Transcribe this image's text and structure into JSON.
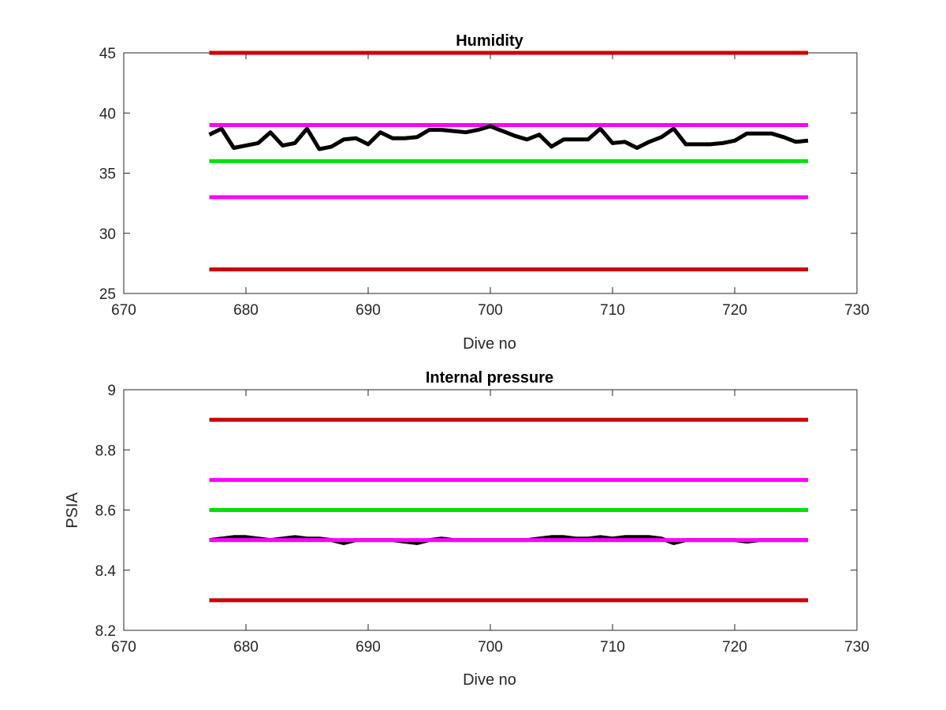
{
  "chart_data": [
    {
      "type": "line",
      "title": "Humidity",
      "xlabel": "Dive no",
      "ylabel": "",
      "xlim": [
        670,
        730
      ],
      "ylim": [
        25,
        45
      ],
      "xticks": [
        670,
        680,
        690,
        700,
        710,
        720,
        730
      ],
      "yticks": [
        25,
        30,
        35,
        40,
        45
      ],
      "grid": false,
      "legend": "none",
      "series": [
        {
          "role": "upper-limit",
          "color": "#cc0000",
          "x": [
            677,
            726
          ],
          "y": [
            45,
            45
          ]
        },
        {
          "role": "upper-warning",
          "color": "#ff00ff",
          "x": [
            677,
            726
          ],
          "y": [
            39,
            39
          ]
        },
        {
          "role": "nominal",
          "color": "#00e000",
          "x": [
            677,
            726
          ],
          "y": [
            36,
            36
          ]
        },
        {
          "role": "lower-warning",
          "color": "#ff00ff",
          "x": [
            677,
            726
          ],
          "y": [
            33,
            33
          ]
        },
        {
          "role": "lower-limit",
          "color": "#cc0000",
          "x": [
            677,
            726
          ],
          "y": [
            27,
            27
          ]
        },
        {
          "role": "measurement",
          "color": "#000000",
          "x": [
            677,
            678,
            679,
            680,
            681,
            682,
            683,
            684,
            685,
            686,
            687,
            688,
            689,
            690,
            691,
            692,
            693,
            694,
            695,
            696,
            697,
            698,
            699,
            700,
            701,
            702,
            703,
            704,
            705,
            706,
            707,
            708,
            709,
            710,
            711,
            712,
            713,
            714,
            715,
            716,
            717,
            718,
            719,
            720,
            721,
            722,
            723,
            724,
            725,
            726
          ],
          "y": [
            38.2,
            38.7,
            37.1,
            37.3,
            37.5,
            38.4,
            37.3,
            37.5,
            38.7,
            37.0,
            37.2,
            37.8,
            37.9,
            37.4,
            38.4,
            37.9,
            37.9,
            38.0,
            38.6,
            38.6,
            38.5,
            38.4,
            38.6,
            38.9,
            38.5,
            38.1,
            37.8,
            38.2,
            37.2,
            37.8,
            37.8,
            37.8,
            38.7,
            37.5,
            37.6,
            37.1,
            37.6,
            38.0,
            38.7,
            37.4,
            37.4,
            37.4,
            37.5,
            37.7,
            38.3,
            38.3,
            38.3,
            38.0,
            37.6,
            37.7
          ]
        }
      ]
    },
    {
      "type": "line",
      "title": "Internal pressure",
      "xlabel": "Dive no",
      "ylabel": "PSIA",
      "xlim": [
        670,
        730
      ],
      "ylim": [
        8.2,
        9
      ],
      "xticks": [
        670,
        680,
        690,
        700,
        710,
        720,
        730
      ],
      "yticks": [
        8.2,
        8.4,
        8.6,
        8.8,
        9
      ],
      "grid": false,
      "legend": "none",
      "series": [
        {
          "role": "upper-limit",
          "color": "#cc0000",
          "x": [
            677,
            726
          ],
          "y": [
            8.9,
            8.9
          ]
        },
        {
          "role": "upper-warning",
          "color": "#ff00ff",
          "x": [
            677,
            726
          ],
          "y": [
            8.7,
            8.7
          ]
        },
        {
          "role": "nominal",
          "color": "#00e000",
          "x": [
            677,
            726
          ],
          "y": [
            8.6,
            8.6
          ]
        },
        {
          "role": "measurement",
          "color": "#000000",
          "x": [
            677,
            678,
            679,
            680,
            681,
            682,
            683,
            684,
            685,
            686,
            687,
            688,
            689,
            690,
            691,
            692,
            693,
            694,
            695,
            696,
            697,
            698,
            699,
            700,
            701,
            702,
            703,
            704,
            705,
            706,
            707,
            708,
            709,
            710,
            711,
            712,
            713,
            714,
            715,
            716,
            717,
            718,
            719,
            720,
            721,
            722,
            723,
            724,
            725,
            726
          ],
          "y": [
            8.5,
            8.505,
            8.51,
            8.51,
            8.505,
            8.5,
            8.505,
            8.51,
            8.505,
            8.505,
            8.5,
            8.49,
            8.5,
            8.5,
            8.5,
            8.5,
            8.495,
            8.49,
            8.5,
            8.505,
            8.5,
            8.5,
            8.5,
            8.5,
            8.5,
            8.5,
            8.5,
            8.505,
            8.51,
            8.51,
            8.505,
            8.505,
            8.51,
            8.505,
            8.51,
            8.51,
            8.51,
            8.505,
            8.49,
            8.5,
            8.5,
            8.5,
            8.5,
            8.5,
            8.495,
            8.5,
            8.5,
            8.5,
            8.5,
            8.5
          ]
        },
        {
          "role": "lower-warning",
          "color": "#ff00ff",
          "x": [
            677,
            726
          ],
          "y": [
            8.5,
            8.5
          ]
        },
        {
          "role": "lower-limit",
          "color": "#cc0000",
          "x": [
            677,
            726
          ],
          "y": [
            8.3,
            8.3
          ]
        }
      ]
    }
  ]
}
